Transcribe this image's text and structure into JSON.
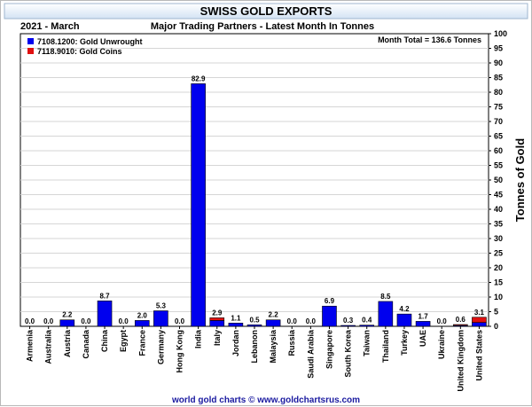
{
  "header": {
    "title": "SWISS GOLD EXPORTS",
    "period": "2021 - March",
    "subtitle": "Major Trading Partners - Latest Month In Tonnes",
    "total": "Month Total = 136.6 Tonnes"
  },
  "footer": {
    "credit": "world gold charts © www.goldchartsrus.com"
  },
  "colors": {
    "unwrought": "#0000ee",
    "coins": "#e01010",
    "title_bg_top": "#ffffff",
    "title_bg_bottom": "#d8e6f5"
  },
  "chart_data": {
    "type": "bar",
    "stacked": true,
    "title": "SWISS GOLD EXPORTS",
    "subtitle": "Major Trading Partners - Latest Month In Tonnes",
    "ylabel": "Tonnes of Gold",
    "ylim": [
      0,
      100
    ],
    "yticks": [
      0,
      5,
      10,
      15,
      20,
      25,
      30,
      35,
      40,
      45,
      50,
      55,
      60,
      65,
      70,
      75,
      80,
      85,
      90,
      95,
      100
    ],
    "grid": true,
    "legend_position": "top-left",
    "categories": [
      "Armenia",
      "Australia",
      "Austria",
      "Canada",
      "China",
      "Egypt",
      "France",
      "Germany",
      "Hong Kong",
      "India",
      "Italy",
      "Jordan",
      "Lebanon",
      "Malaysia",
      "Russia",
      "Saudi Arabia",
      "Singapore",
      "South Korea",
      "Taiwan",
      "Thailand",
      "Turkey",
      "UAE",
      "Ukraine",
      "United Kingdom",
      "United States"
    ],
    "series": [
      {
        "name": "7108.1200: Gold Unwrought",
        "color": "#0000ee",
        "values": [
          0.0,
          0.0,
          2.2,
          0.0,
          8.7,
          0.0,
          2.0,
          5.3,
          0.0,
          82.9,
          2.0,
          1.1,
          0.5,
          2.2,
          0.0,
          0.0,
          6.9,
          0.3,
          0.4,
          8.5,
          4.2,
          1.7,
          0.0,
          0.3,
          1.3
        ]
      },
      {
        "name": "7118.9010: Gold Coins",
        "color": "#e01010",
        "values": [
          0.0,
          0.0,
          0.0,
          0.0,
          0.0,
          0.0,
          0.0,
          0.0,
          0.0,
          0.0,
          0.9,
          0.0,
          0.0,
          0.0,
          0.0,
          0.0,
          0.0,
          0.0,
          0.0,
          0.0,
          0.0,
          0.0,
          0.0,
          0.3,
          1.8
        ]
      }
    ],
    "data_labels": [
      "0.0",
      "0.0",
      "2.2",
      "0.0",
      "8.7",
      "0.0",
      "2.0",
      "5.3",
      "0.0",
      "82.9",
      "2.9",
      "1.1",
      "0.5",
      "2.2",
      "0.0",
      "0.0",
      "6.9",
      "0.3",
      "0.4",
      "8.5",
      "4.2",
      "1.7",
      "0.0",
      "0.6",
      "3.1"
    ]
  }
}
